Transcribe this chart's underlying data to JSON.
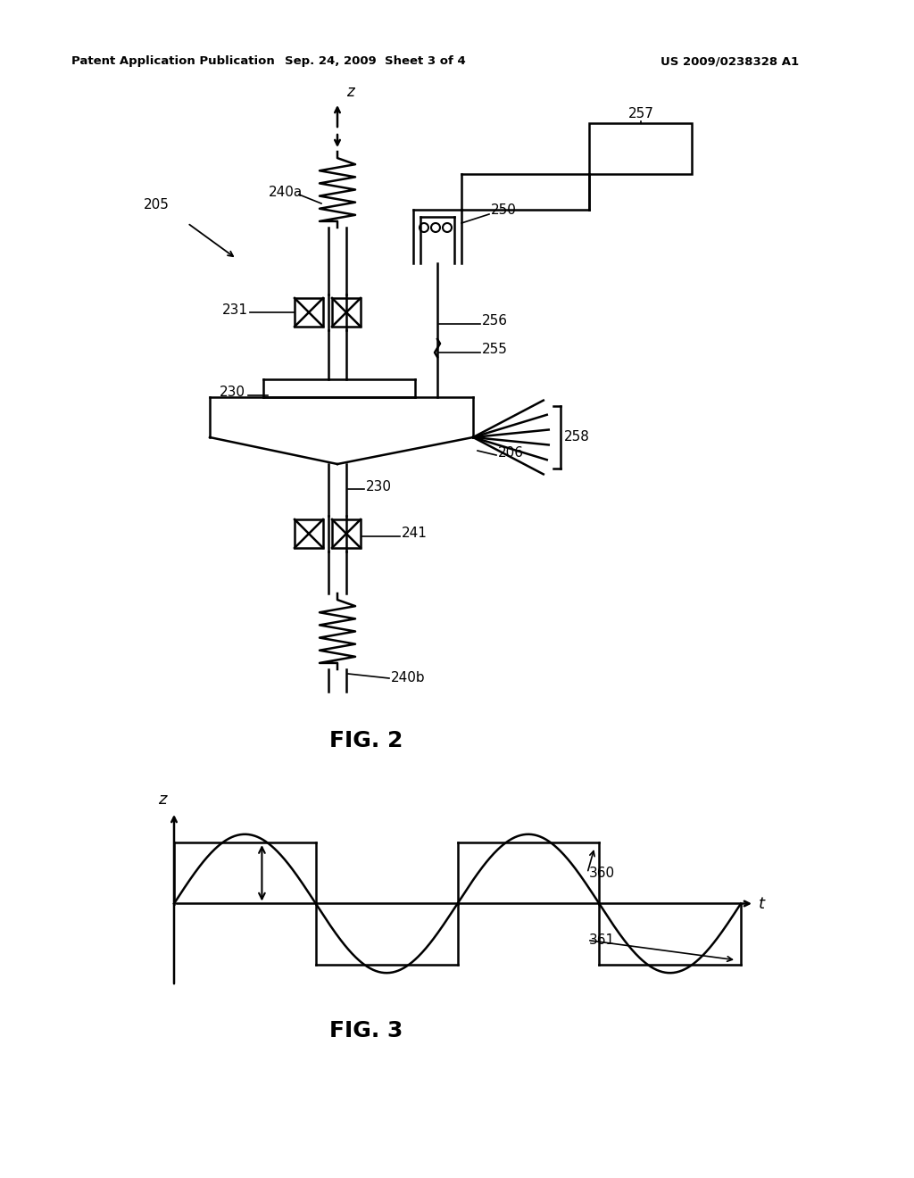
{
  "bg_color": "#ffffff",
  "line_color": "#000000",
  "header_text": "Patent Application Publication",
  "header_date": "Sep. 24, 2009  Sheet 3 of 4",
  "header_patent": "US 2009/0238328 A1"
}
